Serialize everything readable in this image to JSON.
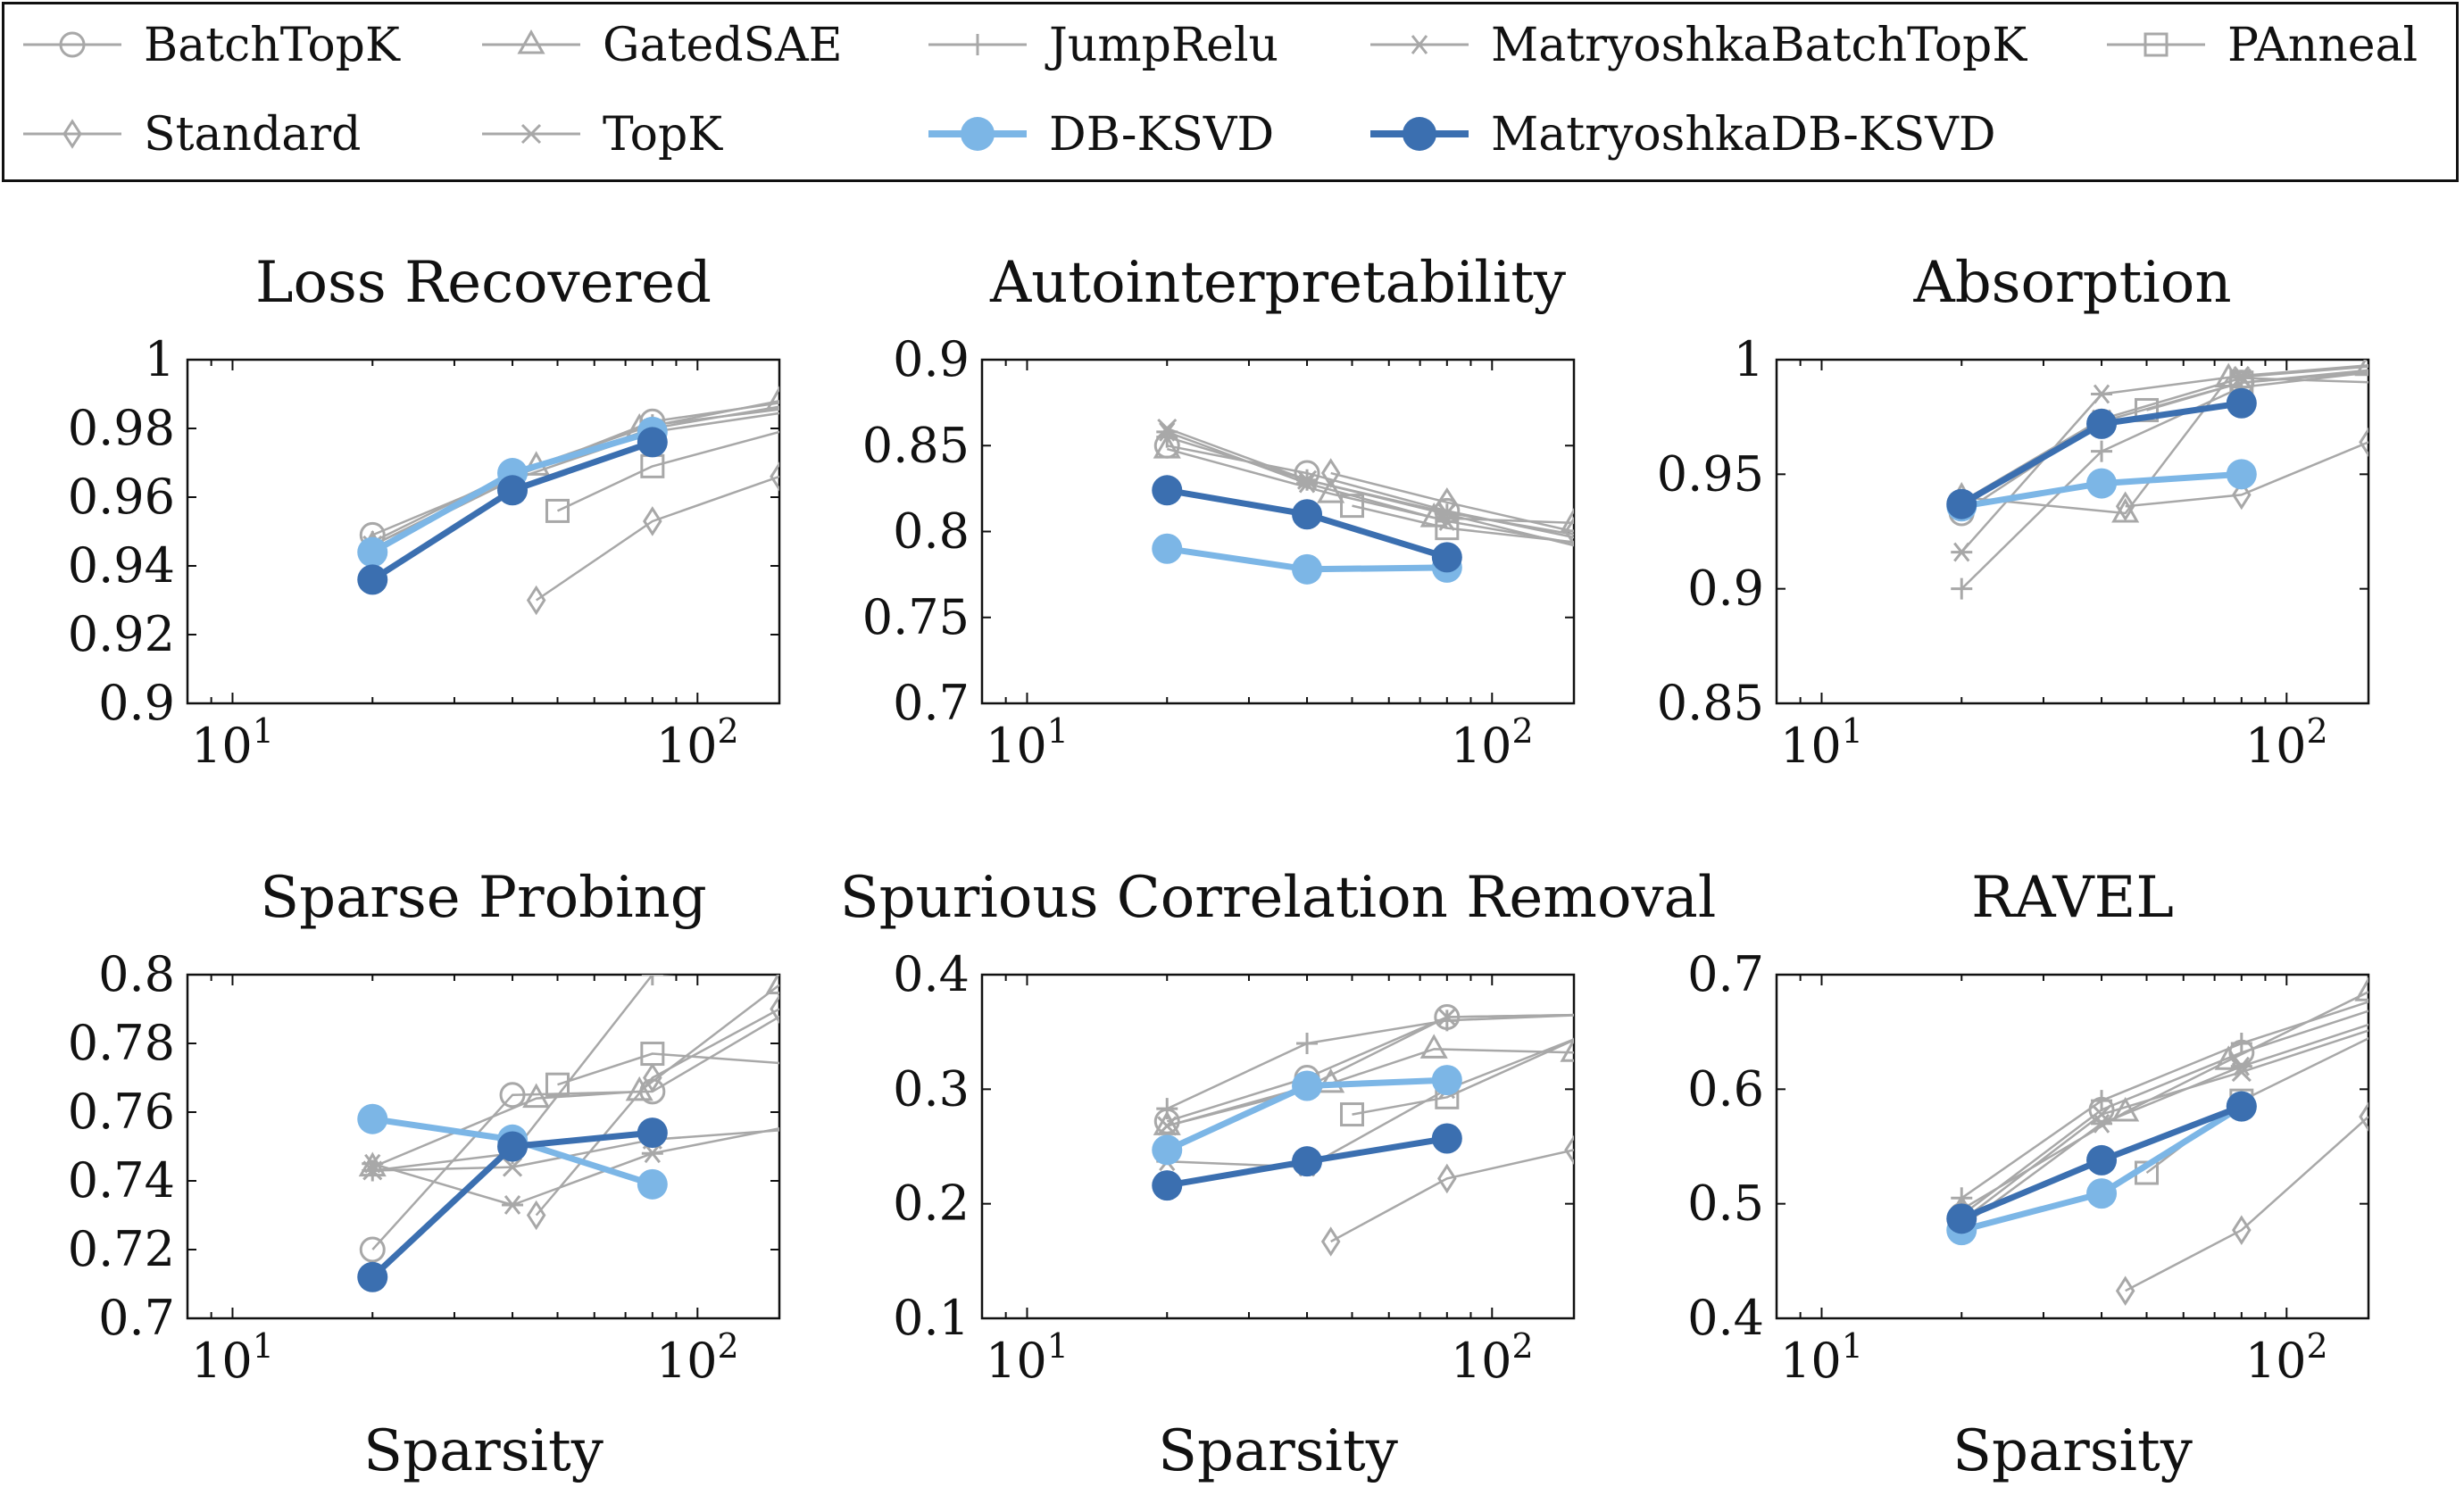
{
  "legend": [
    {
      "name": "BatchTopK",
      "marker": "circle",
      "color": "#a8a8a8",
      "highlight": false
    },
    {
      "name": "GatedSAE",
      "marker": "triangle",
      "color": "#a8a8a8",
      "highlight": false
    },
    {
      "name": "JumpRelu",
      "marker": "plus",
      "color": "#a8a8a8",
      "highlight": false
    },
    {
      "name": "MatryoshkaBatchTopK",
      "marker": "star",
      "color": "#a8a8a8",
      "highlight": false
    },
    {
      "name": "PAnneal",
      "marker": "square",
      "color": "#a8a8a8",
      "highlight": false
    },
    {
      "name": "Standard",
      "marker": "diamond",
      "color": "#a8a8a8",
      "highlight": false
    },
    {
      "name": "TopK",
      "marker": "cross",
      "color": "#a8a8a8",
      "highlight": false
    },
    {
      "name": "DB-KSVD",
      "marker": "filled-circle",
      "color": "#7cb6e6",
      "highlight": true
    },
    {
      "name": "MatryoshkaDB-KSVD",
      "marker": "filled-circle",
      "color": "#3b6fb0",
      "highlight": true
    }
  ],
  "chart_data": [
    {
      "type": "line",
      "title": "Loss Recovered",
      "xlabel": "",
      "ylabel": "",
      "xscale": "log",
      "xlim": [
        8,
        150
      ],
      "ylim": [
        0.9,
        1.0
      ],
      "xticks": [
        "10^1",
        "10^2"
      ],
      "yticks": [
        "0.9",
        "0.92",
        "0.94",
        "0.96",
        "0.98",
        "1"
      ],
      "grid": false,
      "series": [
        {
          "name": "BatchTopK",
          "x": [
            20,
            40,
            80,
            160
          ],
          "y": [
            0.949,
            0.966,
            0.982,
            0.988
          ]
        },
        {
          "name": "GatedSAE",
          "x": [
            20,
            45,
            75,
            150
          ],
          "y": [
            0.946,
            0.969,
            0.98,
            0.988
          ]
        },
        {
          "name": "JumpRelu",
          "x": [
            20,
            40,
            80,
            160
          ],
          "y": [
            0.947,
            0.967,
            0.981,
            0.986
          ]
        },
        {
          "name": "MatryoshkaBatchTopK",
          "x": [
            20,
            40,
            80,
            160
          ],
          "y": [
            0.945,
            0.965,
            0.979,
            0.985
          ]
        },
        {
          "name": "PAnneal",
          "x": [
            50,
            80,
            160
          ],
          "y": [
            0.956,
            0.969,
            0.98
          ]
        },
        {
          "name": "Standard",
          "x": [
            45,
            80,
            150
          ],
          "y": [
            0.93,
            0.953,
            0.966
          ]
        },
        {
          "name": "TopK",
          "x": [
            20,
            40,
            80,
            160
          ],
          "y": [
            0.946,
            0.966,
            0.98,
            0.987
          ]
        },
        {
          "name": "DB-KSVD",
          "x": [
            20,
            40,
            80
          ],
          "y": [
            0.944,
            0.967,
            0.979
          ]
        },
        {
          "name": "MatryoshkaDB-KSVD",
          "x": [
            20,
            40,
            80
          ],
          "y": [
            0.936,
            0.962,
            0.976
          ]
        }
      ]
    },
    {
      "type": "line",
      "title": "Autointerpretability",
      "xlabel": "",
      "ylabel": "",
      "xscale": "log",
      "xlim": [
        8,
        150
      ],
      "ylim": [
        0.7,
        0.9
      ],
      "xticks": [
        "10^1",
        "10^2"
      ],
      "yticks": [
        "0.7",
        "0.75",
        "0.8",
        "0.85",
        "0.9"
      ],
      "grid": false,
      "series": [
        {
          "name": "BatchTopK",
          "x": [
            20,
            40,
            80,
            160
          ],
          "y": [
            0.85,
            0.834,
            0.812,
            0.795
          ]
        },
        {
          "name": "GatedSAE",
          "x": [
            20,
            45,
            75,
            150
          ],
          "y": [
            0.848,
            0.822,
            0.808,
            0.805
          ]
        },
        {
          "name": "JumpRelu",
          "x": [
            20,
            40,
            80,
            160
          ],
          "y": [
            0.855,
            0.83,
            0.81,
            0.79
          ]
        },
        {
          "name": "MatryoshkaBatchTopK",
          "x": [
            20,
            40,
            80,
            160
          ],
          "y": [
            0.858,
            0.828,
            0.806,
            0.792
          ]
        },
        {
          "name": "PAnneal",
          "x": [
            50,
            80,
            160
          ],
          "y": [
            0.815,
            0.802,
            0.793
          ]
        },
        {
          "name": "Standard",
          "x": [
            45,
            80,
            150
          ],
          "y": [
            0.834,
            0.817,
            0.8
          ]
        },
        {
          "name": "TopK",
          "x": [
            20,
            40,
            80,
            160
          ],
          "y": [
            0.86,
            0.83,
            0.811,
            0.797
          ]
        },
        {
          "name": "DB-KSVD",
          "x": [
            20,
            40,
            80
          ],
          "y": [
            0.79,
            0.778,
            0.779
          ]
        },
        {
          "name": "MatryoshkaDB-KSVD",
          "x": [
            20,
            40,
            80
          ],
          "y": [
            0.824,
            0.81,
            0.785
          ]
        }
      ]
    },
    {
      "type": "line",
      "title": "Absorption",
      "xlabel": "",
      "ylabel": "",
      "xscale": "log",
      "xlim": [
        8,
        150
      ],
      "ylim": [
        0.85,
        1.0
      ],
      "xticks": [
        "10^1",
        "10^2"
      ],
      "yticks": [
        "0.85",
        "0.9",
        "0.95",
        "1"
      ],
      "grid": false,
      "series": [
        {
          "name": "BatchTopK",
          "x": [
            20,
            40,
            80,
            160
          ],
          "y": [
            0.933,
            0.973,
            0.99,
            0.996
          ]
        },
        {
          "name": "GatedSAE",
          "x": [
            20,
            45,
            75,
            150
          ],
          "y": [
            0.94,
            0.933,
            0.992,
            0.997
          ]
        },
        {
          "name": "JumpRelu",
          "x": [
            20,
            40,
            80,
            160
          ],
          "y": [
            0.9,
            0.96,
            0.988,
            0.995
          ]
        },
        {
          "name": "MatryoshkaBatchTopK",
          "x": [
            20,
            40,
            80,
            160
          ],
          "y": [
            0.916,
            0.985,
            0.993,
            0.998
          ]
        },
        {
          "name": "PAnneal",
          "x": [
            50,
            80,
            160
          ],
          "y": [
            0.978,
            0.99,
            0.995
          ]
        },
        {
          "name": "Standard",
          "x": [
            45,
            80,
            150
          ],
          "y": [
            0.936,
            0.941,
            0.964
          ]
        },
        {
          "name": "TopK",
          "x": [
            20,
            40,
            80,
            160
          ],
          "y": [
            0.938,
            0.974,
            0.992,
            0.99
          ]
        },
        {
          "name": "DB-KSVD",
          "x": [
            20,
            40,
            80
          ],
          "y": [
            0.936,
            0.946,
            0.95
          ]
        },
        {
          "name": "MatryoshkaDB-KSVD",
          "x": [
            20,
            40,
            80
          ],
          "y": [
            0.937,
            0.972,
            0.981
          ]
        }
      ]
    },
    {
      "type": "line",
      "title": "Sparse Probing",
      "xlabel": "Sparsity",
      "ylabel": "",
      "xscale": "log",
      "xlim": [
        8,
        150
      ],
      "ylim": [
        0.7,
        0.8
      ],
      "xticks": [
        "10^1",
        "10^2"
      ],
      "yticks": [
        "0.7",
        "0.72",
        "0.74",
        "0.76",
        "0.78",
        "0.8"
      ],
      "grid": false,
      "series": [
        {
          "name": "BatchTopK",
          "x": [
            20,
            40,
            80,
            160
          ],
          "y": [
            0.72,
            0.765,
            0.766,
            0.79
          ]
        },
        {
          "name": "GatedSAE",
          "x": [
            20,
            45,
            75,
            150
          ],
          "y": [
            0.744,
            0.764,
            0.766,
            0.797
          ]
        },
        {
          "name": "JumpRelu",
          "x": [
            20,
            40,
            80,
            160
          ],
          "y": [
            0.743,
            0.748,
            0.8,
            0.802
          ]
        },
        {
          "name": "MatryoshkaBatchTopK",
          "x": [
            20,
            40,
            80,
            160
          ],
          "y": [
            0.745,
            0.733,
            0.748,
            0.756
          ]
        },
        {
          "name": "PAnneal",
          "x": [
            50,
            80,
            160
          ],
          "y": [
            0.768,
            0.777,
            0.774
          ]
        },
        {
          "name": "Standard",
          "x": [
            45,
            80,
            150
          ],
          "y": [
            0.73,
            0.77,
            0.79
          ]
        },
        {
          "name": "TopK",
          "x": [
            20,
            40,
            80,
            160
          ],
          "y": [
            0.743,
            0.744,
            0.752,
            0.755
          ]
        },
        {
          "name": "DB-KSVD",
          "x": [
            20,
            40,
            80
          ],
          "y": [
            0.758,
            0.752,
            0.739
          ]
        },
        {
          "name": "MatryoshkaDB-KSVD",
          "x": [
            20,
            40,
            80
          ],
          "y": [
            0.712,
            0.75,
            0.754
          ]
        }
      ]
    },
    {
      "type": "line",
      "title": "Spurious Correlation Removal",
      "xlabel": "Sparsity",
      "ylabel": "",
      "xscale": "log",
      "xlim": [
        8,
        150
      ],
      "ylim": [
        0.1,
        0.4
      ],
      "xticks": [
        "10^1",
        "10^2"
      ],
      "yticks": [
        "0.1",
        "0.2",
        "0.3",
        "0.4"
      ],
      "grid": false,
      "series": [
        {
          "name": "BatchTopK",
          "x": [
            20,
            40,
            80,
            160
          ],
          "y": [
            0.272,
            0.31,
            0.363,
            0.365
          ]
        },
        {
          "name": "GatedSAE",
          "x": [
            20,
            45,
            75,
            150
          ],
          "y": [
            0.268,
            0.305,
            0.335,
            0.332
          ]
        },
        {
          "name": "JumpRelu",
          "x": [
            20,
            40,
            80,
            160
          ],
          "y": [
            0.283,
            0.34,
            0.36,
            0.365
          ]
        },
        {
          "name": "MatryoshkaBatchTopK",
          "x": [
            20,
            40,
            80,
            160
          ],
          "y": [
            0.237,
            0.232,
            0.3,
            0.348
          ]
        },
        {
          "name": "PAnneal",
          "x": [
            50,
            80,
            160
          ],
          "y": [
            0.278,
            0.293,
            0.348
          ]
        },
        {
          "name": "Standard",
          "x": [
            45,
            80,
            150
          ],
          "y": [
            0.167,
            0.222,
            0.247
          ]
        },
        {
          "name": "TopK",
          "x": [
            20,
            40,
            80,
            160
          ],
          "y": [
            0.268,
            0.302,
            0.363,
            0.365
          ]
        },
        {
          "name": "DB-KSVD",
          "x": [
            20,
            40,
            80
          ],
          "y": [
            0.247,
            0.303,
            0.308
          ]
        },
        {
          "name": "MatryoshkaDB-KSVD",
          "x": [
            20,
            40,
            80
          ],
          "y": [
            0.216,
            0.237,
            0.257
          ]
        }
      ]
    },
    {
      "type": "line",
      "title": "RAVEL",
      "xlabel": "Sparsity",
      "ylabel": "",
      "xscale": "log",
      "xlim": [
        8,
        150
      ],
      "ylim": [
        0.4,
        0.7
      ],
      "xticks": [
        "10^1",
        "10^2"
      ],
      "yticks": [
        "0.4",
        "0.5",
        "0.6",
        "0.7"
      ],
      "grid": false,
      "series": [
        {
          "name": "BatchTopK",
          "x": [
            20,
            40,
            80,
            160
          ],
          "y": [
            0.49,
            0.582,
            0.632,
            0.672
          ]
        },
        {
          "name": "GatedSAE",
          "x": [
            20,
            45,
            75,
            150
          ],
          "y": [
            0.495,
            0.58,
            0.625,
            0.685
          ]
        },
        {
          "name": "JumpRelu",
          "x": [
            20,
            40,
            80,
            160
          ],
          "y": [
            0.505,
            0.59,
            0.64,
            0.68
          ]
        },
        {
          "name": "MatryoshkaBatchTopK",
          "x": [
            20,
            40,
            80,
            160
          ],
          "y": [
            0.48,
            0.57,
            0.62,
            0.66
          ]
        },
        {
          "name": "PAnneal",
          "x": [
            50,
            80,
            160
          ],
          "y": [
            0.527,
            0.59,
            0.65
          ]
        },
        {
          "name": "Standard",
          "x": [
            45,
            80,
            150
          ],
          "y": [
            0.424,
            0.477,
            0.576
          ]
        },
        {
          "name": "TopK",
          "x": [
            20,
            40,
            80,
            160
          ],
          "y": [
            0.485,
            0.578,
            0.615,
            0.655
          ]
        },
        {
          "name": "DB-KSVD",
          "x": [
            20,
            40,
            80
          ],
          "y": [
            0.477,
            0.509,
            0.585
          ]
        },
        {
          "name": "MatryoshkaDB-KSVD",
          "x": [
            20,
            40,
            80
          ],
          "y": [
            0.487,
            0.538,
            0.585
          ]
        }
      ]
    }
  ]
}
